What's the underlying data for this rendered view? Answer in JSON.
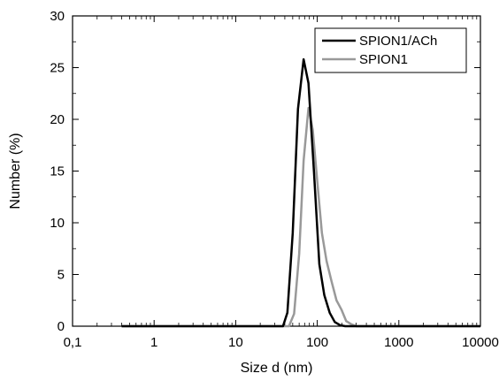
{
  "chart_data": {
    "type": "line",
    "title": "",
    "xlabel": "Size d (nm)",
    "ylabel": "Number (%)",
    "xscale": "log",
    "xlim": [
      0.1,
      10000
    ],
    "ylim": [
      0,
      30
    ],
    "x_ticks": [
      0.1,
      1,
      10,
      100,
      1000,
      10000
    ],
    "x_tick_labels": [
      "0,1",
      "1",
      "10",
      "100",
      "1000",
      "10000"
    ],
    "y_ticks": [
      0,
      5,
      10,
      15,
      20,
      25,
      30
    ],
    "y_tick_labels": [
      "0",
      "5",
      "10",
      "15",
      "20",
      "25",
      "30"
    ],
    "grid": false,
    "legend_position": "top-right",
    "series": [
      {
        "name": "SPION1/ACh",
        "color": "#000000",
        "x": [
          0.4,
          38,
          43,
          50,
          58,
          68,
          78,
          91,
          106,
          122,
          142,
          164,
          190,
          220,
          10000
        ],
        "y": [
          0,
          0,
          1.3,
          9,
          21,
          25.8,
          23.5,
          15,
          6,
          3,
          1.3,
          0.4,
          0.1,
          0,
          0
        ]
      },
      {
        "name": "SPION1",
        "color": "#999999",
        "x": [
          0.4,
          45,
          52,
          60,
          68,
          78,
          88,
          100,
          114,
          130,
          150,
          172,
          198,
          226,
          260,
          300,
          10000
        ],
        "y": [
          0,
          0,
          1.2,
          7,
          16,
          21.1,
          19,
          14,
          9,
          6.3,
          4.3,
          2.5,
          1.6,
          0.5,
          0.2,
          0,
          0
        ]
      }
    ]
  }
}
